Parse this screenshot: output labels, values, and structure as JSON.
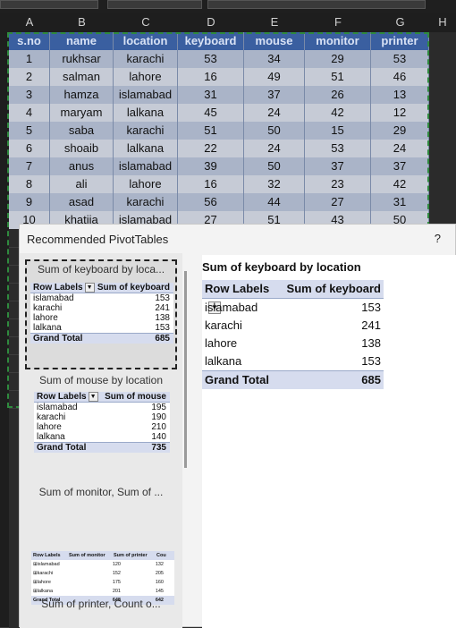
{
  "sheet": {
    "columns": [
      "A",
      "B",
      "C",
      "D",
      "E",
      "F",
      "G",
      "H"
    ],
    "headers": [
      "s.no",
      "name",
      "location",
      "keyboard",
      "mouse",
      "monitor",
      "printer"
    ],
    "rows": [
      [
        "1",
        "rukhsar",
        "karachi",
        "53",
        "34",
        "29",
        "53"
      ],
      [
        "2",
        "salman",
        "lahore",
        "16",
        "49",
        "51",
        "46"
      ],
      [
        "3",
        "hamza",
        "islamabad",
        "31",
        "37",
        "26",
        "13"
      ],
      [
        "4",
        "maryam",
        "lalkana",
        "45",
        "24",
        "42",
        "12"
      ],
      [
        "5",
        "saba",
        "karachi",
        "51",
        "50",
        "15",
        "29"
      ],
      [
        "6",
        "shoaib",
        "lalkana",
        "22",
        "24",
        "53",
        "24"
      ],
      [
        "7",
        "anus",
        "islamabad",
        "39",
        "50",
        "37",
        "37"
      ],
      [
        "8",
        "ali",
        "lahore",
        "16",
        "32",
        "23",
        "42"
      ],
      [
        "9",
        "asad",
        "karachi",
        "56",
        "44",
        "27",
        "31"
      ],
      [
        "10",
        "khatija",
        "islamabad",
        "27",
        "51",
        "43",
        "50"
      ]
    ]
  },
  "dialog": {
    "title": "Recommended PivotTables",
    "help": "?",
    "cards": [
      {
        "title": "Sum of keyboard by loca...",
        "header": [
          "Row Labels",
          "Sum of keyboard"
        ],
        "rows": [
          [
            "islamabad",
            "153"
          ],
          [
            "karachi",
            "241"
          ],
          [
            "lahore",
            "138"
          ],
          [
            "lalkana",
            "153"
          ]
        ],
        "total": [
          "Grand Total",
          "685"
        ]
      },
      {
        "title": "Sum of mouse by location",
        "header": [
          "Row Labels",
          "Sum of mouse"
        ],
        "rows": [
          [
            "islamabad",
            "195"
          ],
          [
            "karachi",
            "190"
          ],
          [
            "lahore",
            "210"
          ],
          [
            "lalkana",
            "140"
          ]
        ],
        "total": [
          "Grand Total",
          "735"
        ]
      },
      {
        "title": "Sum of monitor, Sum of ...",
        "header": [
          "Row Labels",
          "Sum of monitor",
          "Sum of printer",
          "Cou"
        ],
        "rows": [
          [
            "islamabad",
            "120",
            "132"
          ],
          [
            "karachi",
            "152",
            "205"
          ],
          [
            "lahore",
            "175",
            "160"
          ],
          [
            "lalkana",
            "201",
            "145"
          ]
        ],
        "total": [
          "Grand Total",
          "648",
          "642"
        ]
      },
      {
        "title": "Sum of printer, Count o..."
      }
    ],
    "preview": {
      "title": "Sum of keyboard by location",
      "header": [
        "Row Labels",
        "Sum of keyboard"
      ],
      "rows": [
        [
          "islamabad",
          "153"
        ],
        [
          "karachi",
          "241"
        ],
        [
          "lahore",
          "138"
        ],
        [
          "lalkana",
          "153"
        ]
      ],
      "total": [
        "Grand Total",
        "685"
      ]
    }
  }
}
